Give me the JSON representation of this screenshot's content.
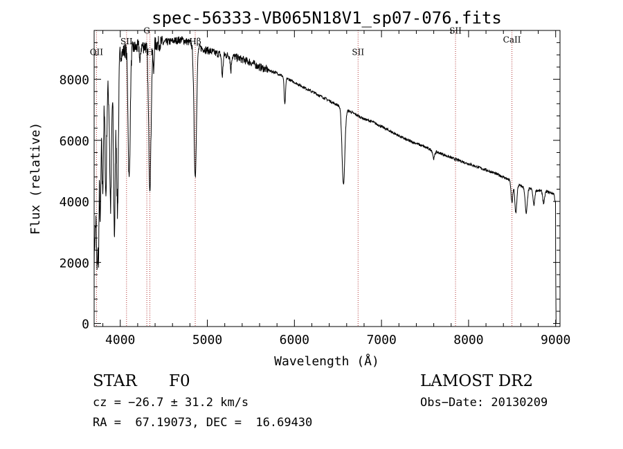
{
  "chart_data": {
    "type": "line",
    "title": "spec-56333-VB065N18V1_sp07-076.fits",
    "xlabel": "Wavelength (Å)",
    "ylabel": "Flux (relative)",
    "xlim": [
      3700,
      9050
    ],
    "ylim": [
      -100,
      9600
    ],
    "xticks": [
      4000,
      5000,
      6000,
      7000,
      8000,
      9000
    ],
    "yticks": [
      0,
      2000,
      4000,
      6000,
      8000
    ],
    "grid": false,
    "line_color": "#000000",
    "marker_color": "#b03030",
    "line_markers": [
      {
        "label": "OII",
        "x": 3727,
        "label_y": 8800
      },
      {
        "label": "SII",
        "x": 4072,
        "label_y": 9150
      },
      {
        "label": "G",
        "x": 4305,
        "label_y": 9500
      },
      {
        "label": "H",
        "x": 4340,
        "label_y": 8800
      },
      {
        "label": "Hβ",
        "x": 4861,
        "label_y": 9150
      },
      {
        "label": "SII",
        "x": 6731,
        "label_y": 8800
      },
      {
        "label": "SII",
        "x": 7850,
        "label_y": 9500
      },
      {
        "label": "CaII",
        "x": 8498,
        "label_y": 9200
      }
    ],
    "continuum": [
      [
        3700,
        2200
      ],
      [
        3720,
        3500
      ],
      [
        3760,
        5500
      ],
      [
        3800,
        6800
      ],
      [
        3850,
        7600
      ],
      [
        3900,
        7900
      ],
      [
        3950,
        8300
      ],
      [
        4000,
        8800
      ],
      [
        4050,
        8950
      ],
      [
        4100,
        9000
      ],
      [
        4200,
        9050
      ],
      [
        4300,
        9100
      ],
      [
        4400,
        9150
      ],
      [
        4500,
        9200
      ],
      [
        4600,
        9250
      ],
      [
        4700,
        9300
      ],
      [
        4800,
        9200
      ],
      [
        4900,
        9050
      ],
      [
        5000,
        8950
      ],
      [
        5100,
        8850
      ],
      [
        5200,
        8800
      ],
      [
        5300,
        8750
      ],
      [
        5400,
        8650
      ],
      [
        5500,
        8550
      ],
      [
        5600,
        8400
      ],
      [
        5700,
        8300
      ],
      [
        5800,
        8200
      ],
      [
        5900,
        8050
      ],
      [
        6000,
        7900
      ],
      [
        6100,
        7750
      ],
      [
        6200,
        7600
      ],
      [
        6300,
        7450
      ],
      [
        6400,
        7300
      ],
      [
        6500,
        7150
      ],
      [
        6600,
        7000
      ],
      [
        6700,
        6850
      ],
      [
        6800,
        6700
      ],
      [
        6900,
        6600
      ],
      [
        7000,
        6450
      ],
      [
        7100,
        6300
      ],
      [
        7200,
        6150
      ],
      [
        7300,
        6000
      ],
      [
        7400,
        5900
      ],
      [
        7500,
        5780
      ],
      [
        7600,
        5650
      ],
      [
        7700,
        5550
      ],
      [
        7800,
        5430
      ],
      [
        7900,
        5330
      ],
      [
        8000,
        5230
      ],
      [
        8100,
        5130
      ],
      [
        8200,
        5030
      ],
      [
        8300,
        4920
      ],
      [
        8400,
        4800
      ],
      [
        8500,
        4650
      ],
      [
        8600,
        4500
      ],
      [
        8700,
        4420
      ],
      [
        8800,
        4350
      ],
      [
        8900,
        4320
      ],
      [
        8980,
        4250
      ],
      [
        8995,
        4000
      ]
    ],
    "absorption_lines": [
      [
        3734,
        2500,
        6
      ],
      [
        3750,
        2800,
        6
      ],
      [
        3771,
        2600,
        6
      ],
      [
        3798,
        2400,
        7
      ],
      [
        3835,
        3200,
        8
      ],
      [
        3889,
        4000,
        10
      ],
      [
        3933,
        5200,
        10
      ],
      [
        3968,
        4800,
        10
      ],
      [
        4102,
        4300,
        12
      ],
      [
        4227,
        600,
        5
      ],
      [
        4340,
        4600,
        14
      ],
      [
        4383,
        900,
        5
      ],
      [
        4861,
        4300,
        14
      ],
      [
        5172,
        700,
        8
      ],
      [
        5270,
        500,
        6
      ],
      [
        5890,
        900,
        8
      ],
      [
        6563,
        2500,
        16
      ],
      [
        7600,
        250,
        10
      ],
      [
        8498,
        700,
        10
      ],
      [
        8542,
        950,
        12
      ],
      [
        8662,
        850,
        12
      ],
      [
        8750,
        500,
        10
      ],
      [
        8863,
        400,
        10
      ]
    ],
    "final_drop": [
      [
        9000,
        2000
      ],
      [
        9005,
        0
      ]
    ]
  },
  "footer": {
    "object_type": "STAR",
    "subclass": "F0",
    "survey": "LAMOST DR2",
    "velocity": "cz = −26.7 ± 31.2 km/s",
    "obs_date": "Obs−Date: 20130209",
    "coords": "RA =  67.19073, DEC =  16.69430"
  }
}
